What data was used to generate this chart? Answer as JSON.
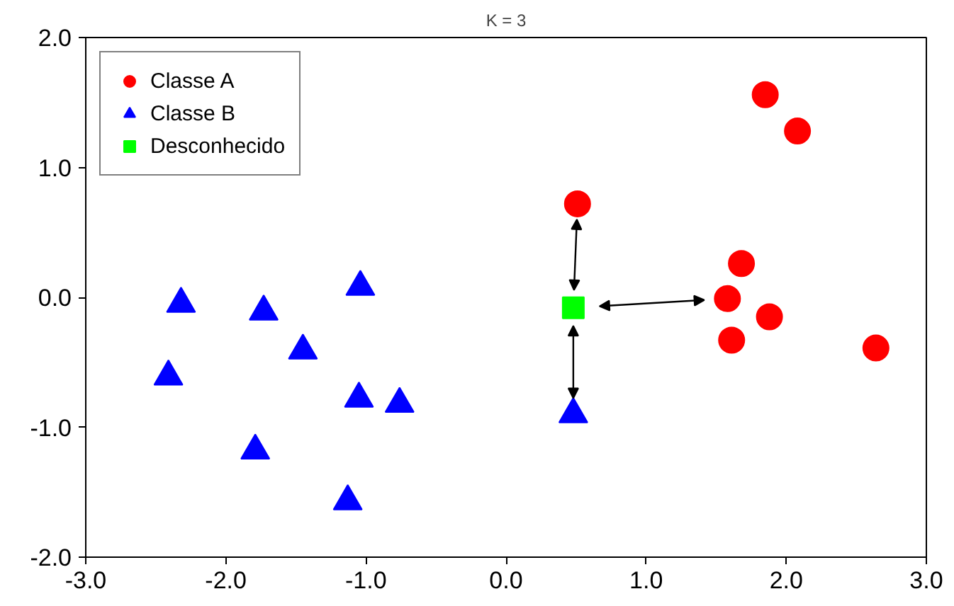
{
  "chart_data": {
    "type": "scatter",
    "title": "K = 3",
    "series": [
      {
        "name": "Classe A",
        "color": "#ff0000",
        "marker": "circle",
        "x": [
          0.51,
          1.85,
          2.08,
          1.68,
          1.58,
          1.61,
          1.88,
          2.64
        ],
        "values": [
          0.72,
          1.56,
          1.28,
          0.26,
          -0.01,
          -0.33,
          -0.15,
          -0.39
        ]
      },
      {
        "name": "Classe B",
        "color": "#0000ff",
        "marker": "triangle",
        "x": [
          -2.32,
          -1.73,
          -1.04,
          -2.41,
          -1.45,
          -1.05,
          -0.76,
          -1.79,
          -1.13,
          0.48
        ],
        "values": [
          -0.05,
          -0.11,
          0.08,
          -0.61,
          -0.41,
          -0.78,
          -0.82,
          -1.18,
          -1.57,
          -0.9
        ]
      },
      {
        "name": "Desconhecido",
        "color": "#00ff00",
        "marker": "square",
        "x": [
          0.48
        ],
        "values": [
          -0.08
        ]
      }
    ],
    "xlim": [
      -3,
      3
    ],
    "ylim": [
      -2,
      2
    ],
    "xticks": [
      {
        "value": -3,
        "label": "-3.0"
      },
      {
        "value": -2,
        "label": "-2.0"
      },
      {
        "value": -1,
        "label": "-1.0"
      },
      {
        "value": 0,
        "label": "0.0"
      },
      {
        "value": 1,
        "label": "1.0"
      },
      {
        "value": 2,
        "label": "2.0"
      },
      {
        "value": 3,
        "label": "3.0"
      }
    ],
    "yticks": [
      {
        "value": -2,
        "label": "-2.0"
      },
      {
        "value": -1,
        "label": "-1.0"
      },
      {
        "value": 0,
        "label": "0.0"
      },
      {
        "value": 1,
        "label": "1.0"
      },
      {
        "value": 2,
        "label": "2.0"
      }
    ],
    "grid": false,
    "legend": "top left"
  }
}
